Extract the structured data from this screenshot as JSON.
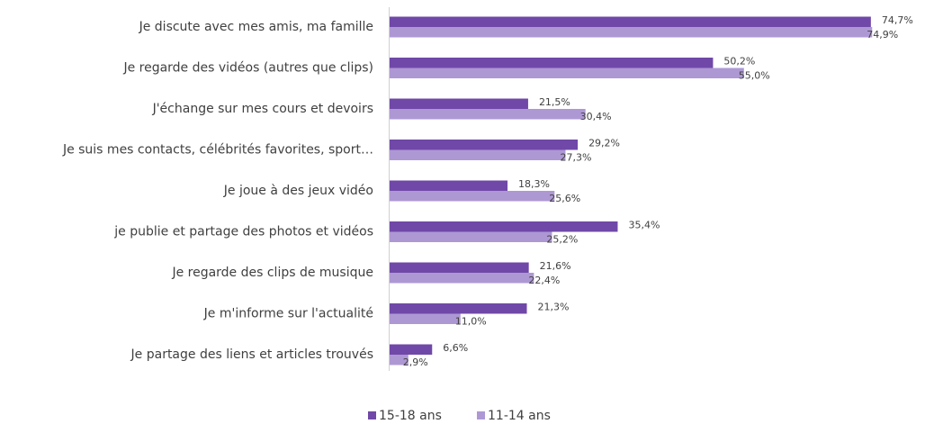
{
  "chart_data": {
    "type": "bar",
    "orientation": "horizontal",
    "categories": [
      "Je discute avec mes amis, ma famille",
      "Je regarde des vidéos (autres que clips)",
      "J'échange sur mes cours et devoirs",
      "Je suis mes contacts, célébrités favorites, sport…",
      "Je joue à des jeux vidéo",
      "je publie et partage des photos et vidéos",
      "Je regarde des clips de musique",
      "Je m'informe sur l'actualité",
      "Je partage des liens et articles trouvés"
    ],
    "series": [
      {
        "name": "15-18 ans",
        "color": "#7048a8",
        "values": [
          74.7,
          50.2,
          21.5,
          29.2,
          18.3,
          35.4,
          21.6,
          21.3,
          6.6
        ],
        "value_labels": [
          "74,7%",
          "50,2%",
          "21,5%",
          "29,2%",
          "18,3%",
          "35,4%",
          "21,6%",
          "21,3%",
          "6,6%"
        ]
      },
      {
        "name": "11-14 ans",
        "color": "#ae98d4",
        "values": [
          74.9,
          55.0,
          30.4,
          27.3,
          25.6,
          25.2,
          22.4,
          11.0,
          2.9
        ],
        "value_labels": [
          "74,9%",
          "55,0%",
          "30,4%",
          "27,3%",
          "25,6%",
          "25,2%",
          "22,4%",
          "11,0%",
          "2,9%"
        ]
      }
    ],
    "legend": "bottom"
  }
}
